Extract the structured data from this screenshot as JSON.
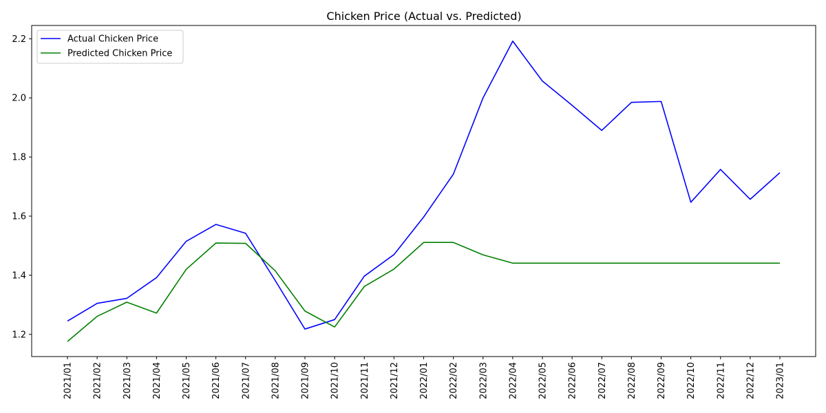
{
  "chart_data": {
    "type": "line",
    "title": "Chicken Price (Actual vs. Predicted)",
    "xlabel": "",
    "ylabel": "",
    "categories": [
      "2021/01",
      "2021/02",
      "2021/03",
      "2021/04",
      "2021/05",
      "2021/06",
      "2021/07",
      "2021/08",
      "2021/09",
      "2021/10",
      "2021/11",
      "2021/12",
      "2022/01",
      "2022/02",
      "2022/03",
      "2022/04",
      "2022/05",
      "2022/06",
      "2022/07",
      "2022/08",
      "2022/09",
      "2022/10",
      "2022/11",
      "2022/12",
      "2023/01"
    ],
    "ylim": [
      1.125,
      2.245
    ],
    "yticks": [
      "1.2",
      "1.4",
      "1.6",
      "1.8",
      "2.0",
      "2.2"
    ],
    "grid": false,
    "legend_position": "top-left",
    "series": [
      {
        "name": "Actual Chicken Price",
        "color": "#0000ff",
        "values": [
          1.245,
          1.305,
          1.322,
          1.392,
          1.515,
          1.572,
          1.542,
          1.382,
          1.218,
          1.25,
          1.397,
          1.47,
          1.597,
          1.742,
          2.0,
          2.192,
          2.057,
          1.975,
          1.89,
          1.985,
          1.988,
          1.647,
          1.758,
          1.657,
          1.747
        ]
      },
      {
        "name": "Predicted Chicken Price",
        "color": "#008000",
        "values": [
          1.176,
          1.261,
          1.309,
          1.272,
          1.42,
          1.509,
          1.508,
          1.415,
          1.279,
          1.225,
          1.362,
          1.421,
          1.511,
          1.511,
          1.469,
          1.441,
          1.441,
          1.441,
          1.441,
          1.441,
          1.441,
          1.441,
          1.441,
          1.441,
          1.441
        ]
      }
    ]
  }
}
